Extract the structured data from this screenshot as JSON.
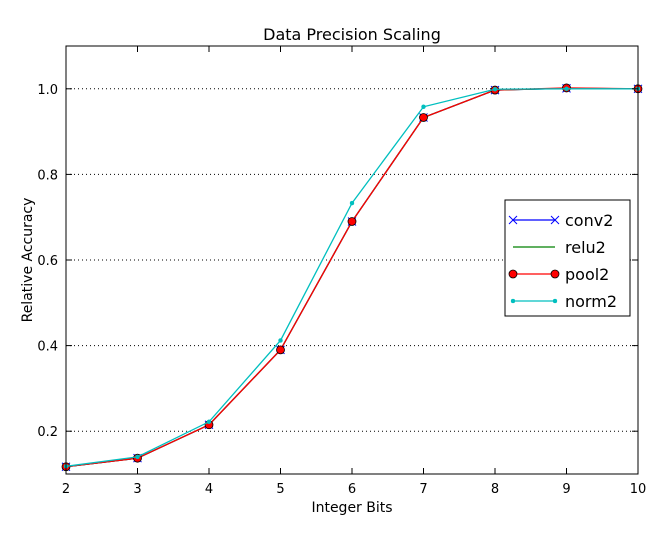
{
  "chart_data": {
    "type": "line",
    "title": "Data Precision Scaling",
    "xlabel": "Integer Bits",
    "ylabel": "Relative Accuracy",
    "xlim": [
      2,
      10
    ],
    "ylim": [
      0.1,
      1.1
    ],
    "x_ticks": [
      2,
      3,
      4,
      5,
      6,
      7,
      8,
      9,
      10
    ],
    "y_ticks": [
      0.2,
      0.4,
      0.6,
      0.8,
      1.0
    ],
    "x_tick_labels": [
      "2",
      "3",
      "4",
      "5",
      "6",
      "7",
      "8",
      "9",
      "10"
    ],
    "y_tick_labels": [
      "0.2",
      "0.4",
      "0.6",
      "0.8",
      "1.0"
    ],
    "grid": "horizontal dotted",
    "legend_position": "center-right",
    "x": [
      2,
      3,
      4,
      5,
      6,
      7,
      8,
      9,
      10
    ],
    "series": [
      {
        "name": "conv2",
        "color": "#0000ff",
        "marker": "x",
        "values": [
          0.117,
          0.137,
          0.215,
          0.39,
          0.69,
          0.933,
          0.997,
          1.001,
          1.0
        ]
      },
      {
        "name": "relu2",
        "color": "#008000",
        "marker": "none",
        "values": [
          0.117,
          0.137,
          0.215,
          0.39,
          0.69,
          0.933,
          0.997,
          1.001,
          1.0
        ]
      },
      {
        "name": "pool2",
        "color": "#ff0000",
        "marker": "circle",
        "values": [
          0.117,
          0.137,
          0.215,
          0.39,
          0.69,
          0.933,
          0.997,
          1.002,
          1.0
        ]
      },
      {
        "name": "norm2",
        "color": "#00bfbf",
        "marker": "dot",
        "values": [
          0.118,
          0.14,
          0.222,
          0.412,
          0.733,
          0.958,
          0.999,
          1.0,
          1.0
        ]
      }
    ]
  }
}
